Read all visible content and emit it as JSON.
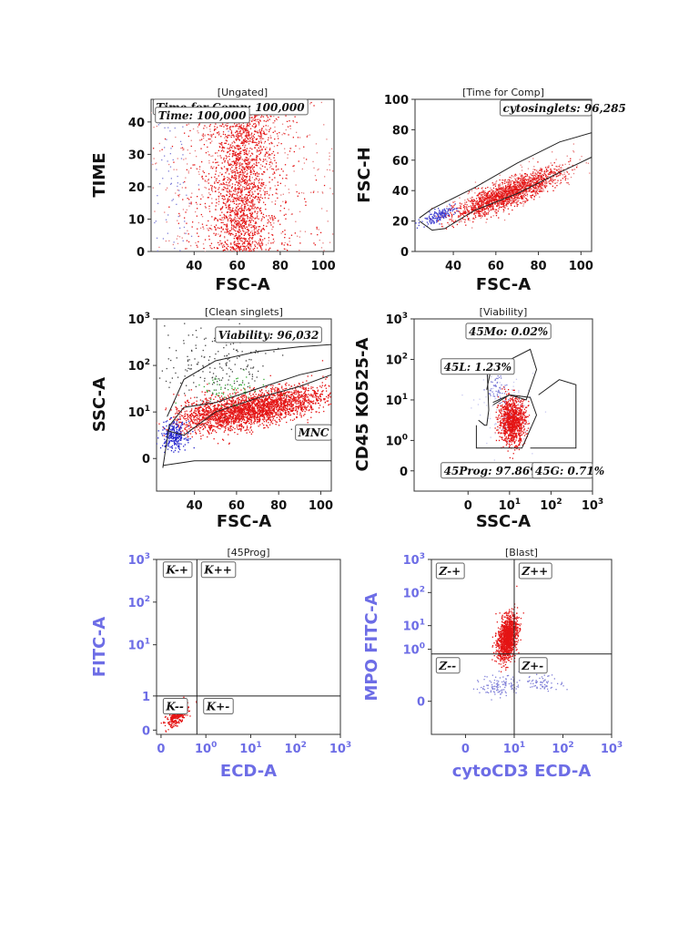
{
  "chart_data": [
    {
      "type": "scatter",
      "id": "p1",
      "title": "[Ungated]",
      "xlabel": "FSC-A",
      "ylabel": "TIME",
      "xlim": [
        20,
        105
      ],
      "ylim": [
        0,
        47
      ],
      "xticks": [
        {
          "v": 40,
          "label": "40"
        },
        {
          "v": 60,
          "label": "60"
        },
        {
          "v": 80,
          "label": "80"
        },
        {
          "v": 100,
          "label": "100"
        }
      ],
      "yticks": [
        {
          "v": 0,
          "label": "0"
        },
        {
          "v": 10,
          "label": "10"
        },
        {
          "v": 20,
          "label": "20"
        },
        {
          "v": 30,
          "label": "30"
        },
        {
          "v": 40,
          "label": "40"
        }
      ],
      "clusters": [
        {
          "color": "#e41414",
          "cx": 62,
          "cy": 23,
          "sx": 6,
          "sy": 14,
          "n": 1400,
          "ymin": 0,
          "ymax": 47
        },
        {
          "color": "#e41414",
          "cx": 62,
          "cy": 23,
          "sx": 14,
          "sy": 14,
          "n": 700,
          "ymin": 0,
          "ymax": 47
        },
        {
          "color": "#e88080",
          "cx": 62,
          "cy": 23,
          "sx": 30,
          "sy": 14,
          "n": 500,
          "ymin": 0,
          "ymax": 47
        },
        {
          "color": "#8080d8",
          "cx": 30,
          "cy": 20,
          "sx": 6,
          "sy": 12,
          "n": 80,
          "ymin": 0,
          "ymax": 47
        }
      ],
      "gates": [],
      "labels": [
        {
          "text": "Time for Comp: 100,000",
          "x": 21,
          "y": 44.5
        },
        {
          "text": "Time: 100,000",
          "x": 22,
          "y": 42.0
        }
      ]
    },
    {
      "type": "scatter",
      "id": "p2",
      "title": "[Time for Comp]",
      "xlabel": "FSC-A",
      "ylabel": "FSC-H",
      "xlim": [
        22,
        105
      ],
      "ylim": [
        0,
        100
      ],
      "xticks": [
        {
          "v": 40,
          "label": "40"
        },
        {
          "v": 60,
          "label": "60"
        },
        {
          "v": 80,
          "label": "80"
        },
        {
          "v": 100,
          "label": "100"
        }
      ],
      "yticks": [
        {
          "v": 0,
          "label": "0"
        },
        {
          "v": 20,
          "label": "20"
        },
        {
          "v": 40,
          "label": "40"
        },
        {
          "v": 60,
          "label": "60"
        },
        {
          "v": 80,
          "label": "80"
        },
        {
          "v": 100,
          "label": "100"
        }
      ],
      "clusters": [
        {
          "color": "#e41414",
          "cx": 65,
          "cy": 38,
          "sx": 12,
          "sy": 4,
          "n": 1600,
          "corr": 0.55,
          "slope": 0.55
        },
        {
          "color": "#e88080",
          "cx": 70,
          "cy": 42,
          "sx": 18,
          "sy": 6,
          "n": 300,
          "slope": 0.55
        },
        {
          "color": "#4040d0",
          "cx": 33,
          "cy": 24,
          "sx": 4,
          "sy": 2,
          "n": 160,
          "slope": 0.55
        }
      ],
      "gates": [
        {
          "points": [
            [
              24,
              22
            ],
            [
              30,
              28
            ],
            [
              50,
              42
            ],
            [
              70,
              58
            ],
            [
              90,
              72
            ],
            [
              105,
              78
            ],
            [
              105,
              62
            ],
            [
              90,
              52
            ],
            [
              70,
              38
            ],
            [
              50,
              27
            ],
            [
              36,
              15
            ],
            [
              30,
              14
            ],
            [
              24,
              20
            ]
          ]
        }
      ],
      "labels": [
        {
          "text": "cytosinglets: 96,285",
          "x": 62,
          "y": 94
        }
      ]
    },
    {
      "type": "scatter",
      "id": "p3",
      "title": "[Clean singlets]",
      "xlabel": "FSC-A",
      "ylabel": "SSC-A",
      "xlim": [
        22,
        105
      ],
      "ylim": [
        -0.7,
        3
      ],
      "xticks": [
        {
          "v": 40,
          "label": "40"
        },
        {
          "v": 60,
          "label": "60"
        },
        {
          "v": 80,
          "label": "80"
        },
        {
          "v": 100,
          "label": "100"
        }
      ],
      "yticks": [
        {
          "v": 0,
          "label": "0",
          "exp": ""
        },
        {
          "v": 1,
          "label": "10",
          "exp": "1"
        },
        {
          "v": 2,
          "label": "10",
          "exp": "2"
        },
        {
          "v": 3,
          "label": "10",
          "exp": "3"
        }
      ],
      "clusters": [
        {
          "color": "#e41414",
          "cx": 70,
          "cy": 1.1,
          "sx": 16,
          "sy": 0.18,
          "n": 2200,
          "slope": 0.008
        },
        {
          "color": "#e41414",
          "cx": 50,
          "cy": 0.95,
          "sx": 10,
          "sy": 0.2,
          "n": 500
        },
        {
          "color": "#2222cc",
          "cx": 30,
          "cy": 0.5,
          "sx": 3,
          "sy": 0.15,
          "n": 260
        },
        {
          "color": "#33aa33",
          "cx": 55,
          "cy": 1.5,
          "sx": 10,
          "sy": 0.15,
          "n": 60
        },
        {
          "color": "#444444",
          "cx": 50,
          "cy": 2.0,
          "sx": 14,
          "sy": 0.45,
          "n": 200
        }
      ],
      "gates": [
        {
          "points": [
            [
              27,
              0.9
            ],
            [
              35,
              1.7
            ],
            [
              50,
              2.1
            ],
            [
              70,
              2.3
            ],
            [
              90,
              2.4
            ],
            [
              105,
              2.45
            ],
            [
              105,
              1.8
            ],
            [
              90,
              1.55
            ],
            [
              70,
              1.3
            ],
            [
              50,
              1.0
            ],
            [
              35,
              0.5
            ],
            [
              27,
              0.6
            ]
          ]
        },
        {
          "points": [
            [
              25,
              -0.2
            ],
            [
              28,
              0.7
            ],
            [
              35,
              1.1
            ],
            [
              50,
              1.2
            ],
            [
              70,
              1.5
            ],
            [
              90,
              1.8
            ],
            [
              105,
              1.95
            ]
          ]
        },
        {
          "points": [
            [
              25,
              -0.15
            ],
            [
              40,
              -0.05
            ],
            [
              105,
              -0.05
            ]
          ]
        }
      ],
      "labels": [
        {
          "text": "Viability: 96,032",
          "x": 50,
          "y": 2.65
        },
        {
          "text": "MNC",
          "x": 88,
          "y": 0.55
        }
      ]
    },
    {
      "type": "scatter",
      "id": "p4",
      "title": "[Viability]",
      "xlabel": "SSC-A",
      "ylabel": "CD45 KO525-A",
      "xlim": [
        -1.3,
        3
      ],
      "ylim": [
        -0.4,
        3
      ],
      "xticks": [
        {
          "v": 0,
          "label": "0",
          "exp": ""
        },
        {
          "v": 1,
          "label": "10",
          "exp": "1"
        },
        {
          "v": 2,
          "label": "10",
          "exp": "2"
        },
        {
          "v": 3,
          "label": "10",
          "exp": "3"
        }
      ],
      "yticks": [
        {
          "v": 0,
          "label": "0",
          "exp": ""
        },
        {
          "v": 0.6,
          "label": "10",
          "exp": "0"
        },
        {
          "v": 1.4,
          "label": "10",
          "exp": "1"
        },
        {
          "v": 2.2,
          "label": "10",
          "exp": "2"
        },
        {
          "v": 3,
          "label": "10",
          "exp": "3"
        }
      ],
      "clusters": [
        {
          "color": "#e41414",
          "cx": 1.05,
          "cy": 1.0,
          "sx": 0.16,
          "sy": 0.22,
          "n": 1100
        },
        {
          "color": "#8080d8",
          "cx": 0.7,
          "cy": 1.6,
          "sx": 0.12,
          "sy": 0.18,
          "n": 60
        },
        {
          "color": "#c8c8f0",
          "cx": 0.9,
          "cy": 1.2,
          "sx": 0.35,
          "sy": 0.35,
          "n": 80
        }
      ],
      "gates": [
        {
          "points": [
            [
              0.25,
              2.1
            ],
            [
              0.45,
              2.2
            ],
            [
              0.5,
              1.2
            ],
            [
              0.45,
              0.9
            ],
            [
              0.4,
              0.9
            ],
            [
              0.25,
              1.0
            ]
          ]
        },
        {
          "points": [
            [
              0.45,
              1.6
            ],
            [
              0.55,
              2.0
            ],
            [
              1.5,
              2.4
            ],
            [
              1.65,
              2.0
            ],
            [
              1.4,
              1.4
            ],
            [
              1.0,
              1.5
            ],
            [
              0.6,
              1.3
            ]
          ]
        },
        {
          "points": [
            [
              0.2,
              0.9
            ],
            [
              0.2,
              0.45
            ],
            [
              1.3,
              0.45
            ],
            [
              1.65,
              1.1
            ],
            [
              1.5,
              1.45
            ],
            [
              1.0,
              1.5
            ],
            [
              0.6,
              1.35
            ]
          ]
        },
        {
          "points": [
            [
              1.5,
              0.45
            ],
            [
              2.6,
              0.45
            ],
            [
              2.6,
              1.7
            ],
            [
              2.2,
              1.8
            ],
            [
              1.7,
              1.5
            ]
          ]
        }
      ],
      "labels": [
        {
          "text": "45Mo: 0.02%",
          "x": -0.05,
          "y": 2.75
        },
        {
          "text": "45L: 1.23%",
          "x": -0.65,
          "y": 2.05
        },
        {
          "text": "45Prog: 97.86%",
          "x": -0.65,
          "y": 0.0
        },
        {
          "text": "45G: 0.71%",
          "x": 1.55,
          "y": 0.0
        }
      ]
    },
    {
      "type": "scatter",
      "id": "p5",
      "title": "[45Prog]",
      "xlabel": "ECD-A",
      "ylabel": "FITC-A",
      "xlim": [
        -0.1,
        4
      ],
      "ylim": [
        -0.1,
        4
      ],
      "blue_labels": true,
      "xticks": [
        {
          "v": 0,
          "label": "0",
          "exp": ""
        },
        {
          "v": 1,
          "label": "10",
          "exp": "0"
        },
        {
          "v": 2,
          "label": "10",
          "exp": "1"
        },
        {
          "v": 3,
          "label": "10",
          "exp": "2"
        },
        {
          "v": 4,
          "label": "10",
          "exp": "3"
        }
      ],
      "yticks": [
        {
          "v": 0,
          "label": "0",
          "exp": ""
        },
        {
          "v": 0.8,
          "label": "1",
          "exp": ""
        },
        {
          "v": 2,
          "label": "10",
          "exp": "1"
        },
        {
          "v": 3,
          "label": "10",
          "exp": "2"
        },
        {
          "v": 4,
          "label": "10",
          "exp": "3"
        }
      ],
      "clusters": [
        {
          "color": "#e41414",
          "cx": 0.35,
          "cy": 0.35,
          "sx": 0.12,
          "sy": 0.1,
          "n": 350,
          "slope": 0.7
        }
      ],
      "gates": [],
      "quadrants": {
        "x": 0.8,
        "y": 0.8
      },
      "labels": [
        {
          "text": "K-+",
          "x": 0.05,
          "y": 3.75
        },
        {
          "text": "K++",
          "x": 0.9,
          "y": 3.75
        },
        {
          "text": "K--",
          "x": 0.05,
          "y": 0.55
        },
        {
          "text": "K+-",
          "x": 0.95,
          "y": 0.55
        }
      ]
    },
    {
      "type": "scatter",
      "id": "p6",
      "title": "[Blast]",
      "xlabel": "cytoCD3 ECD-A",
      "ylabel": "MPO FITC-A",
      "xlim": [
        -0.7,
        3
      ],
      "ylim": [
        -0.7,
        3
      ],
      "blue_labels": true,
      "xticks": [
        {
          "v": 0,
          "label": "0",
          "exp": ""
        },
        {
          "v": 1,
          "label": "10",
          "exp": "1"
        },
        {
          "v": 2,
          "label": "10",
          "exp": "2"
        },
        {
          "v": 3,
          "label": "10",
          "exp": "3"
        }
      ],
      "yticks": [
        {
          "v": 0,
          "label": "0",
          "exp": ""
        },
        {
          "v": 1.1,
          "label": "10",
          "exp": "0"
        },
        {
          "v": 1.6,
          "label": "10",
          "exp": "1"
        },
        {
          "v": 2.3,
          "label": "10",
          "exp": "2"
        },
        {
          "v": 3,
          "label": "10",
          "exp": "3"
        }
      ],
      "clusters": [
        {
          "color": "#e41414",
          "cx": 0.85,
          "cy": 1.35,
          "sx": 0.1,
          "sy": 0.22,
          "n": 1300,
          "slope": 0.8
        },
        {
          "color": "#8080d8",
          "cx": 0.7,
          "cy": 0.35,
          "sx": 0.2,
          "sy": 0.12,
          "n": 120
        },
        {
          "color": "#8080d8",
          "cx": 1.6,
          "cy": 0.4,
          "sx": 0.2,
          "sy": 0.08,
          "n": 70
        }
      ],
      "gates": [],
      "quadrants": {
        "x": 1.0,
        "y": 1.0
      },
      "labels": [
        {
          "text": "Z-+",
          "x": -0.6,
          "y": 2.75
        },
        {
          "text": "Z++",
          "x": 1.1,
          "y": 2.75
        },
        {
          "text": "Z--",
          "x": -0.6,
          "y": 0.75
        },
        {
          "text": "Z+-",
          "x": 1.1,
          "y": 0.75
        }
      ]
    }
  ]
}
